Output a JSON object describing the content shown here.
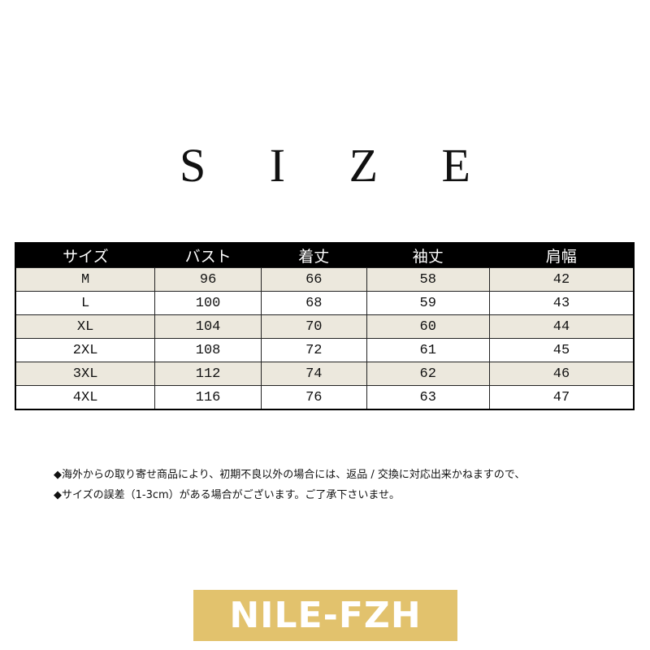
{
  "title": "S I Z E",
  "table": {
    "headers": [
      "サイズ",
      "バスト",
      "着丈",
      "袖丈",
      "肩幅"
    ],
    "rows": [
      [
        "M",
        "96",
        "66",
        "58",
        "42"
      ],
      [
        "L",
        "100",
        "68",
        "59",
        "43"
      ],
      [
        "XL",
        "104",
        "70",
        "60",
        "44"
      ],
      [
        "2XL",
        "108",
        "72",
        "61",
        "45"
      ],
      [
        "3XL",
        "112",
        "74",
        "62",
        "46"
      ],
      [
        "4XL",
        "116",
        "76",
        "63",
        "47"
      ]
    ]
  },
  "notes": [
    "◆海外からの取り寄せ商品により、初期不良以外の場合には、返品 / 交換に対応出来かねますので、",
    "◆サイズの誤差（1-3cm）がある場合がございます。ご了承下さいませ。"
  ],
  "brand": {
    "label": "NILE-FZH",
    "color": "#e2c26d"
  }
}
